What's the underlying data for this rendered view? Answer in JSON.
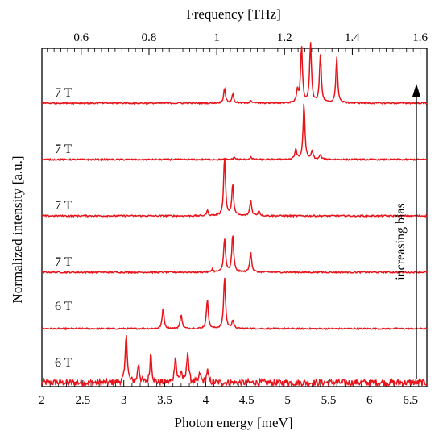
{
  "chart_data": {
    "type": "line",
    "title": "",
    "xlabel": "Photon energy [meV]",
    "top_xlabel": "Frequency [THz]",
    "ylabel": "Normalized intensity [a.u.]",
    "xlim": [
      2.0,
      6.7
    ],
    "top_xlim": [
      0.484,
      1.62
    ],
    "x_ticks": [
      "2",
      "2.5",
      "3",
      "3.5",
      "4",
      "4.5",
      "5",
      "5.5",
      "6",
      "6.5"
    ],
    "x_tick_values": [
      2.0,
      2.5,
      3.0,
      3.5,
      4.0,
      4.5,
      5.0,
      5.5,
      6.0,
      6.5
    ],
    "top_ticks": [
      "0.6",
      "0.8",
      "1",
      "1.2",
      "1.4",
      "1.6"
    ],
    "top_tick_values": [
      0.6,
      0.8,
      1.0,
      1.2,
      1.4,
      1.6
    ],
    "grid": false,
    "line_color": "#e8141b",
    "annotation": {
      "text": "increasing bias",
      "arrow": "up"
    },
    "series": [
      {
        "name": "6 T",
        "peaks": [
          [
            3.03,
            0.95
          ],
          [
            3.18,
            0.35
          ],
          [
            3.33,
            0.55
          ],
          [
            3.63,
            0.5
          ],
          [
            3.7,
            0.2
          ],
          [
            3.78,
            0.6
          ],
          [
            3.93,
            0.17
          ],
          [
            4.02,
            0.22
          ]
        ],
        "noise": 0.06
      },
      {
        "name": "6 T",
        "peaks": [
          [
            3.48,
            0.38
          ],
          [
            3.7,
            0.27
          ],
          [
            4.02,
            0.55
          ],
          [
            4.23,
            0.95
          ],
          [
            4.33,
            0.15
          ]
        ],
        "noise": 0.012
      },
      {
        "name": "7 T",
        "peaks": [
          [
            4.23,
            0.55
          ],
          [
            4.33,
            0.6
          ],
          [
            4.55,
            0.33
          ],
          [
            4.08,
            0.05
          ]
        ],
        "noise": 0.012
      },
      {
        "name": "7 T",
        "peaks": [
          [
            4.23,
            0.95
          ],
          [
            4.33,
            0.5
          ],
          [
            4.55,
            0.25
          ],
          [
            4.02,
            0.08
          ],
          [
            4.65,
            0.08
          ]
        ],
        "noise": 0.012
      },
      {
        "name": "7 T",
        "peaks": [
          [
            5.2,
            1.0
          ],
          [
            5.1,
            0.18
          ],
          [
            5.3,
            0.15
          ],
          [
            5.4,
            0.08
          ],
          [
            4.35,
            0.04
          ],
          [
            4.55,
            0.04
          ]
        ],
        "noise": 0.012
      },
      {
        "name": "7 T",
        "peaks": [
          [
            5.17,
            0.95
          ],
          [
            5.28,
            1.0
          ],
          [
            5.4,
            0.8
          ],
          [
            5.6,
            0.75
          ],
          [
            4.23,
            0.25
          ],
          [
            4.33,
            0.15
          ],
          [
            4.55,
            0.05
          ],
          [
            5.12,
            0.2
          ]
        ],
        "noise": 0.012
      }
    ]
  }
}
